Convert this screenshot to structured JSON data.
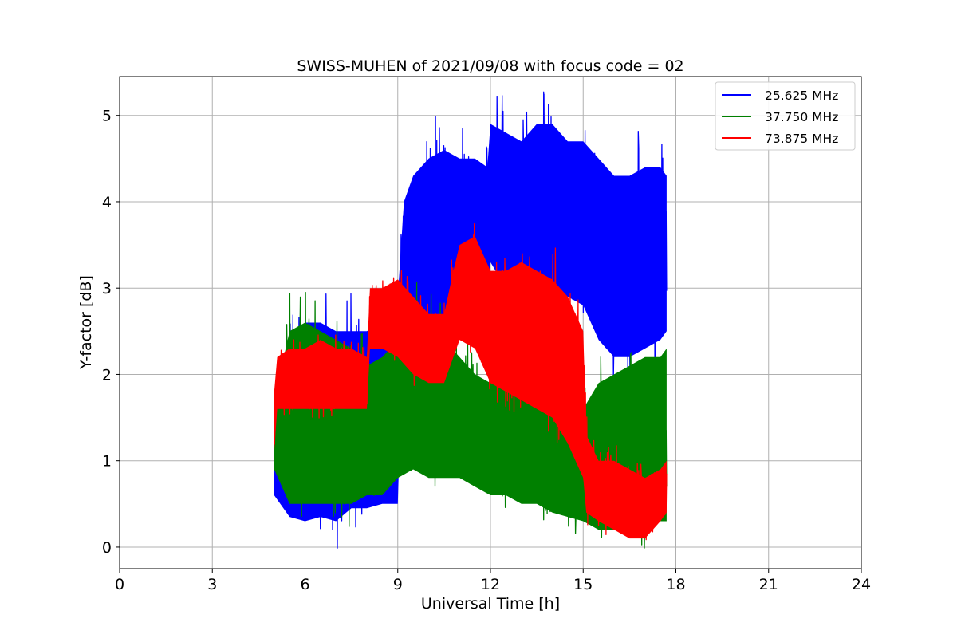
{
  "chart_data": {
    "type": "line",
    "title": "SWISS-MUHEN of 2021/09/08 with focus code = 02",
    "xlabel": "Universal Time [h]",
    "ylabel": "Y-factor [dB]",
    "xlim": [
      0,
      24
    ],
    "ylim": [
      -0.25,
      5.45
    ],
    "xticks": [
      0,
      3,
      6,
      9,
      12,
      15,
      18,
      21,
      24
    ],
    "xtick_labels": [
      "0",
      "3",
      "6",
      "9",
      "12",
      "15",
      "18",
      "21",
      "24"
    ],
    "yticks": [
      0,
      1,
      2,
      3,
      4,
      5
    ],
    "ytick_labels": [
      "0",
      "1",
      "2",
      "3",
      "4",
      "5"
    ],
    "grid": true,
    "legend_position": "top-right",
    "series": [
      {
        "name": "25.625 MHz",
        "color": "#0000ff",
        "x": [
          5.0,
          5.5,
          6.0,
          6.5,
          7.0,
          7.5,
          8.0,
          8.5,
          9.0,
          9.2,
          9.5,
          10.0,
          10.5,
          11.0,
          11.5,
          11.9,
          12.0,
          12.5,
          13.0,
          13.5,
          14.0,
          14.5,
          15.0,
          15.5,
          16.0,
          16.5,
          17.0,
          17.5,
          17.7
        ],
        "low": [
          0.6,
          0.35,
          0.3,
          0.35,
          0.3,
          0.45,
          0.45,
          0.5,
          0.5,
          2.9,
          2.7,
          2.6,
          2.6,
          2.7,
          2.8,
          2.9,
          3.3,
          3.0,
          3.0,
          3.0,
          3.0,
          2.9,
          2.8,
          2.4,
          2.2,
          2.2,
          2.3,
          2.4,
          2.5
        ],
        "high": [
          1.8,
          2.3,
          2.6,
          2.6,
          2.5,
          2.5,
          2.5,
          2.6,
          2.9,
          4.0,
          4.3,
          4.5,
          4.6,
          4.5,
          4.5,
          4.4,
          4.9,
          4.8,
          4.7,
          4.9,
          4.9,
          4.7,
          4.7,
          4.5,
          4.3,
          4.3,
          4.4,
          4.4,
          4.3
        ]
      },
      {
        "name": "37.750 MHz",
        "color": "#008000",
        "x": [
          5.0,
          5.5,
          6.0,
          6.5,
          7.0,
          7.5,
          8.0,
          8.5,
          9.0,
          9.5,
          10.0,
          10.5,
          11.0,
          11.5,
          12.0,
          12.5,
          13.0,
          13.5,
          14.0,
          14.5,
          15.0,
          15.5,
          16.0,
          16.5,
          17.0,
          17.5,
          17.7
        ],
        "low": [
          0.9,
          0.5,
          0.5,
          0.5,
          0.5,
          0.5,
          0.6,
          0.6,
          0.8,
          0.9,
          0.8,
          0.8,
          0.8,
          0.7,
          0.6,
          0.6,
          0.5,
          0.5,
          0.4,
          0.35,
          0.3,
          0.2,
          0.2,
          0.2,
          0.2,
          0.3,
          0.3
        ],
        "high": [
          1.7,
          2.5,
          2.6,
          2.5,
          2.4,
          2.3,
          2.1,
          2.2,
          2.4,
          2.7,
          2.6,
          2.4,
          2.2,
          2.0,
          1.9,
          1.9,
          1.8,
          1.7,
          1.6,
          1.5,
          1.6,
          1.9,
          2.0,
          2.1,
          2.2,
          2.2,
          2.3
        ]
      },
      {
        "name": "73.875 MHz",
        "color": "#ff0000",
        "x": [
          5.0,
          5.1,
          5.5,
          6.0,
          6.5,
          7.0,
          7.5,
          8.0,
          8.1,
          8.5,
          9.0,
          9.5,
          10.0,
          10.5,
          10.8,
          11.0,
          11.5,
          12.0,
          12.5,
          13.0,
          13.5,
          14.0,
          14.5,
          15.0,
          15.1,
          15.5,
          16.0,
          16.5,
          17.0,
          17.5,
          17.7
        ],
        "low": [
          1.1,
          1.6,
          1.6,
          1.6,
          1.6,
          1.6,
          1.6,
          1.6,
          2.3,
          2.3,
          2.2,
          2.0,
          1.9,
          1.9,
          2.2,
          2.4,
          2.3,
          1.9,
          1.8,
          1.7,
          1.6,
          1.5,
          1.2,
          0.8,
          0.4,
          0.3,
          0.2,
          0.1,
          0.1,
          0.3,
          0.4
        ],
        "high": [
          1.8,
          2.2,
          2.3,
          2.3,
          2.4,
          2.3,
          2.3,
          2.2,
          3.0,
          3.0,
          3.1,
          2.9,
          2.7,
          2.7,
          3.2,
          3.5,
          3.6,
          3.2,
          3.2,
          3.3,
          3.2,
          3.1,
          2.9,
          2.5,
          1.3,
          1.0,
          1.0,
          0.9,
          0.8,
          0.9,
          1.0
        ]
      }
    ]
  }
}
